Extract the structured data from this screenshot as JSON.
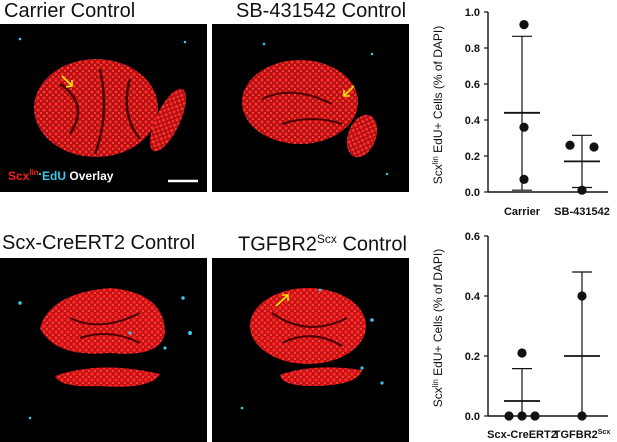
{
  "panels": {
    "carrier_title": "Carrier Control",
    "sb_title": "SB-431542 Control",
    "scx_title": "Scx-CreERT2 Control",
    "tgfbr2_title_main": "TGFBR2",
    "tgfbr2_title_sup": "Scx",
    "tgfbr2_title_tail": " Control"
  },
  "legend": {
    "scx": "Scx",
    "scx_sup": "lin",
    "edu": "EdU",
    "overlay": "Overlay"
  },
  "colors": {
    "red": "#ff1a1a",
    "cyan": "#3ec8e8",
    "arrow": "#f2e600",
    "scalebar": "#ffffff"
  },
  "chart_data": [
    {
      "type": "scatter",
      "ylabel_main": "Scx",
      "ylabel_sup": "lin",
      "ylabel_tail": " EdU+ Cells (% of DAPI)",
      "ylim": [
        0,
        1.0
      ],
      "yticks": [
        "0.0",
        "0.2",
        "0.4",
        "0.6",
        "0.8",
        "1.0"
      ],
      "categories": [
        "Carrier",
        "SB-431542"
      ],
      "series": [
        {
          "points": [
            0.93,
            0.36,
            0.07
          ],
          "mean": 0.44,
          "sd_low": 0.01,
          "sd_high": 0.865
        },
        {
          "points": [
            0.26,
            0.25,
            0.01
          ],
          "mean": 0.17,
          "sd_low": 0.025,
          "sd_high": 0.315
        }
      ]
    },
    {
      "type": "scatter",
      "ylabel_main": "Scx",
      "ylabel_sup": "lin",
      "ylabel_tail": " EdU+ Cells (% of DAPI)",
      "ylim": [
        0,
        0.6
      ],
      "yticks": [
        "0.0",
        "0.2",
        "0.4",
        "0.6"
      ],
      "categories": [
        "Scx-CreERT2",
        "TGFBR2"
      ],
      "category_sup": [
        "",
        "Scx"
      ],
      "series": [
        {
          "points": [
            0.21,
            0.0,
            0.0,
            0.0
          ],
          "mean": 0.05,
          "sd_low": -0.06,
          "sd_high": 0.158
        },
        {
          "points": [
            0.4,
            0.0
          ],
          "mean": 0.2,
          "sd_low": -0.08,
          "sd_high": 0.48
        }
      ]
    }
  ]
}
